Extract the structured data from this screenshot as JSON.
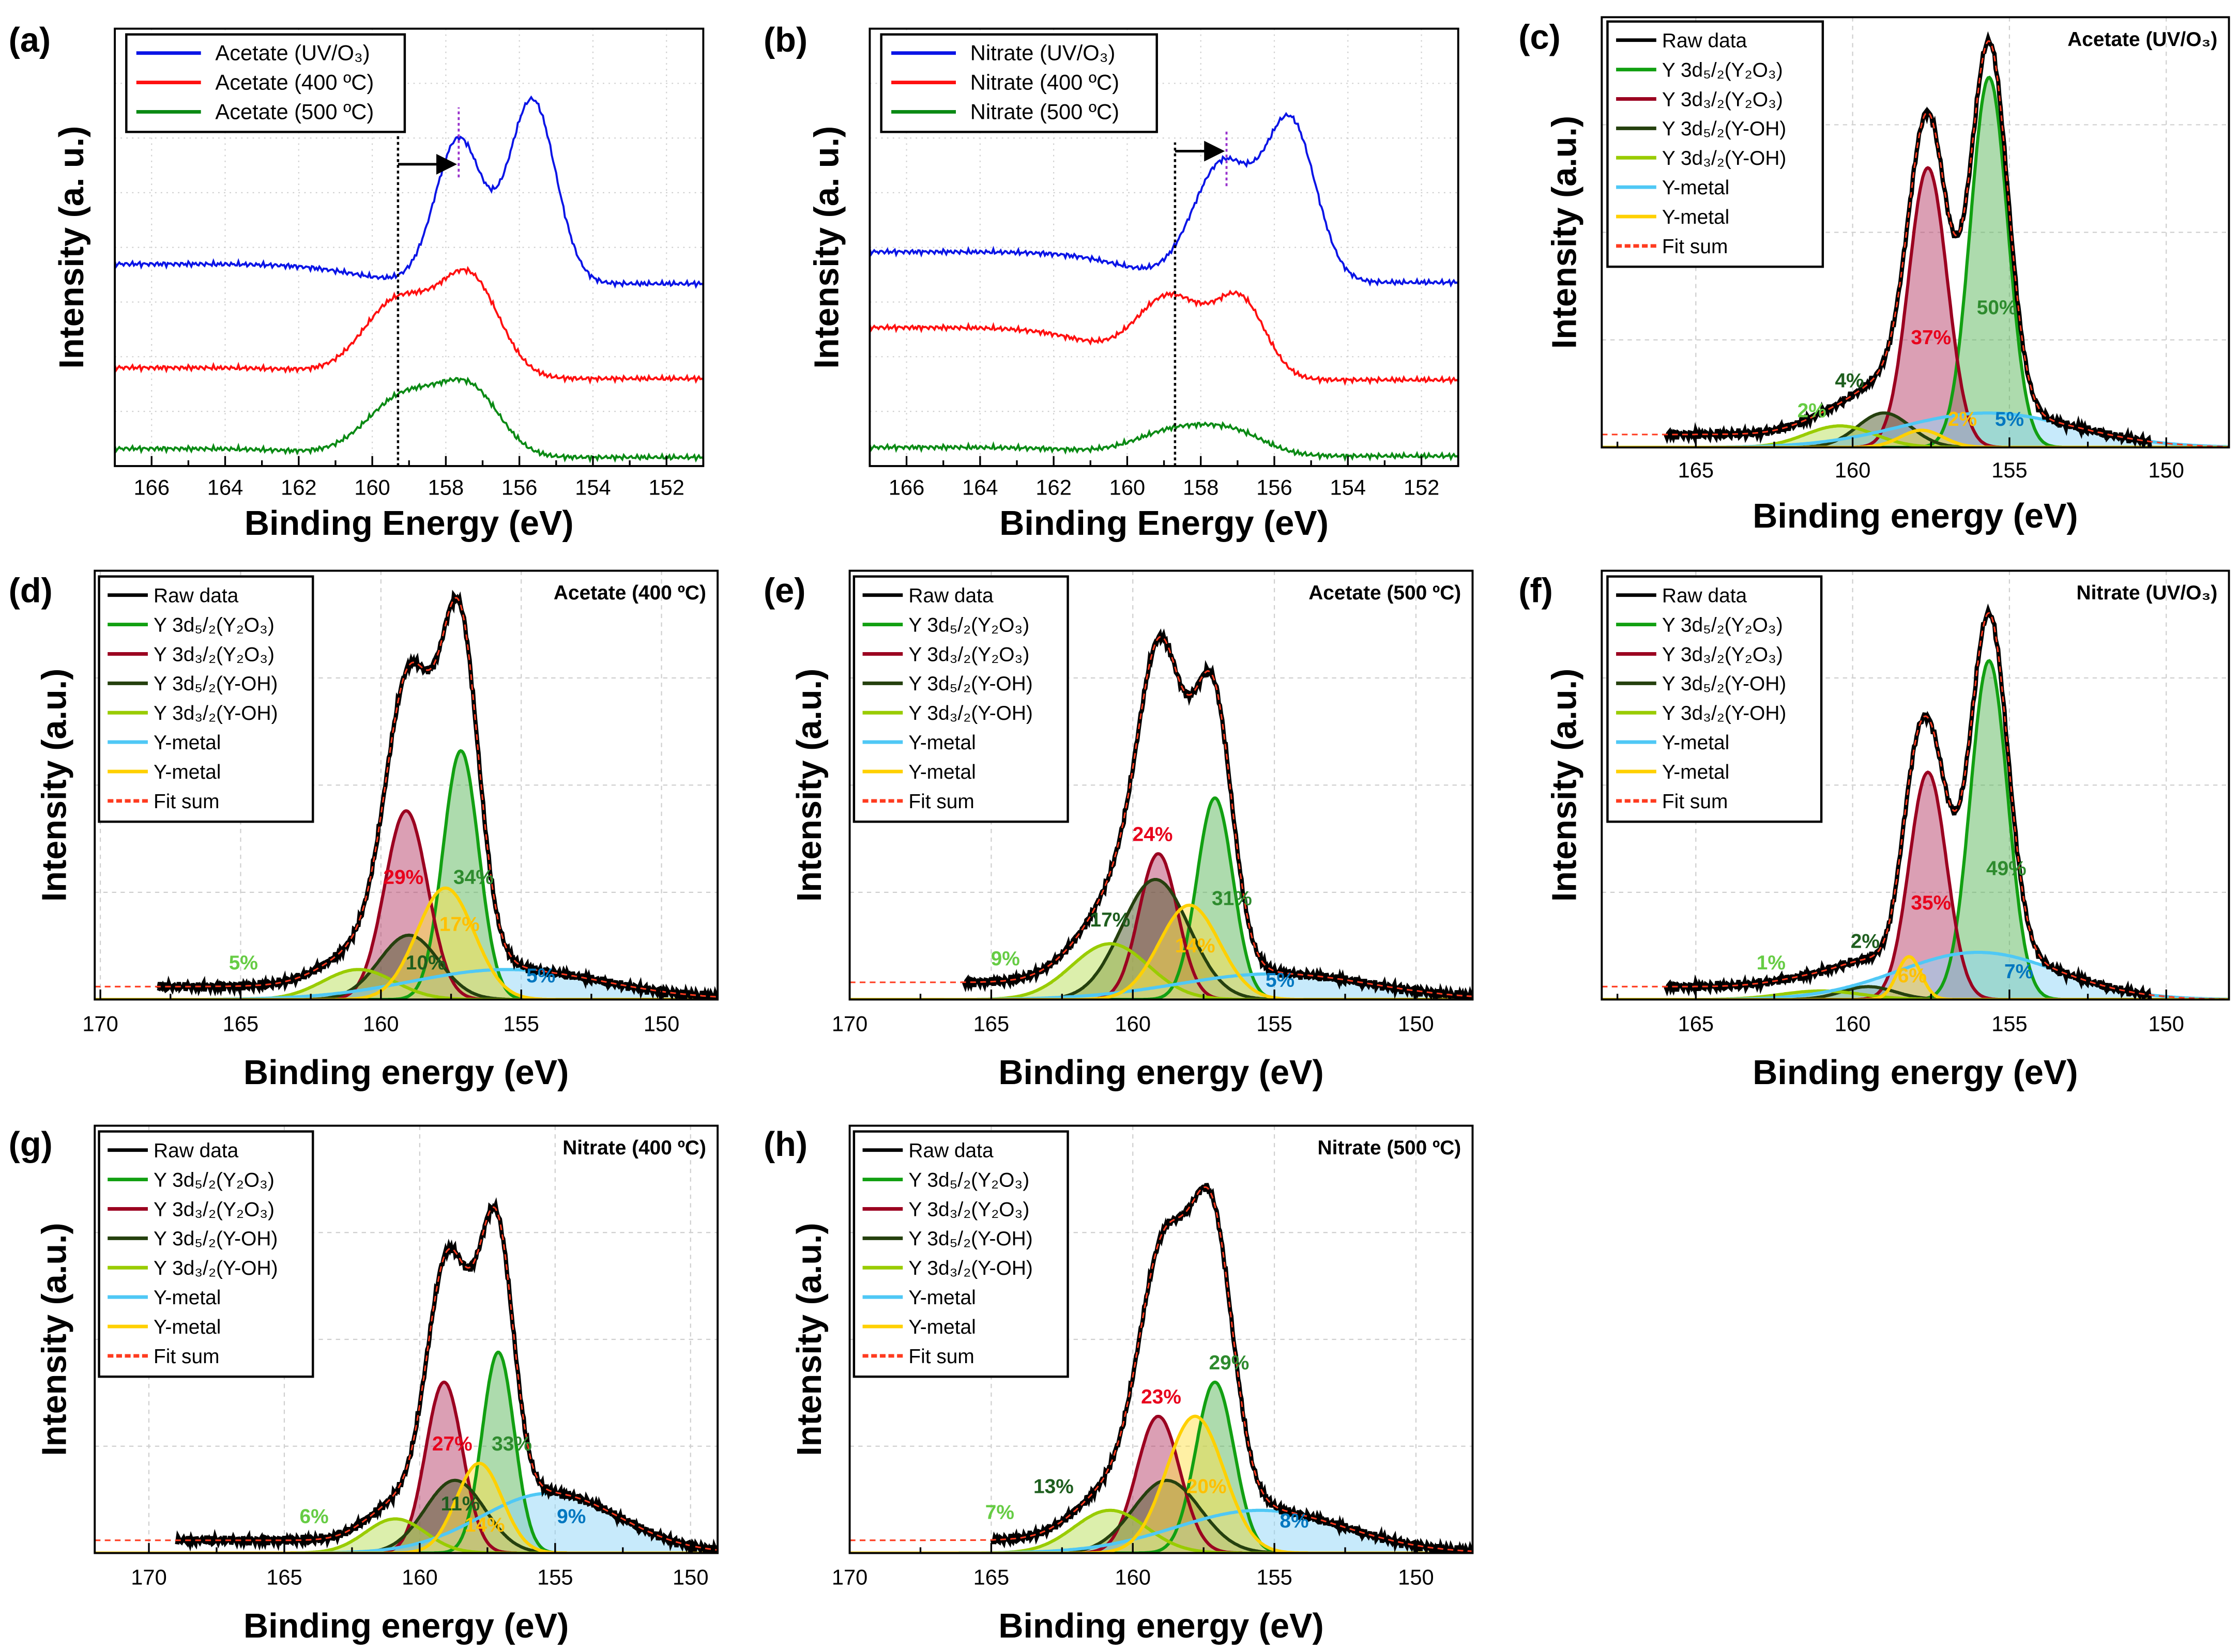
{
  "styles": {
    "raw_color": "#000000",
    "fit_color": "#ff3b1f",
    "components": [
      {
        "line": "#12a012",
        "fill": "#5cb85c",
        "label": "#2e8b2e"
      },
      {
        "line": "#9b0020",
        "fill": "#b8406a",
        "label": "#e8001c"
      },
      {
        "line": "#25400e",
        "fill": "#4d5a2a",
        "label": "#1e5e1e"
      },
      {
        "line": "#99cc00",
        "fill": "#b9e05a",
        "label": "#66cc44"
      },
      {
        "line": "#4fc8f5",
        "fill": "#8fd6f7",
        "label": "#0077c0"
      },
      {
        "line": "#ffd000",
        "fill": "#ffe24a",
        "label": "#ffc000"
      }
    ]
  },
  "chart_data": [
    {
      "panel": "(a)",
      "type": "line",
      "title": "",
      "xlabel": "Binding Energy (eV)",
      "ylabel": "Intensity (a. u.)",
      "xlim": [
        167,
        151
      ],
      "ylim": [
        0,
        1
      ],
      "xticks": [
        166,
        164,
        162,
        160,
        158,
        156,
        154,
        152
      ],
      "xtick_labels": [
        "166",
        "164",
        "162",
        "160",
        "158",
        "156",
        "154",
        "152"
      ],
      "legend_position": "top-left",
      "series": [
        {
          "name": "Acetate (UV/O₃)",
          "color": "#0a14e6",
          "offset": 0.417,
          "step": 0.045,
          "step_center": 160.5,
          "peaks": [
            [
              155.65,
              1.5,
              0.42
            ],
            [
              157.65,
              1.5,
              0.33
            ]
          ]
        },
        {
          "name": "Acetate (400 ºC)",
          "color": "#ff1010",
          "offset": 0.2,
          "step": 0.025,
          "step_center": 161,
          "peaks": [
            [
              157.35,
              1.9,
              0.225
            ],
            [
              159.3,
              2.2,
              0.175
            ]
          ]
        },
        {
          "name": "Acetate (500 ºC)",
          "color": "#0a8a14",
          "offset": 0.02,
          "step": 0.02,
          "step_center": 161.5,
          "peaks": [
            [
              159.1,
              2.4,
              0.14
            ],
            [
              157.3,
              1.9,
              0.14
            ]
          ]
        }
      ],
      "annotations": {
        "shift_from": 159.3,
        "shift_to": 157.65,
        "arrow_y": 0.69,
        "line_top": 0.76,
        "marker_range": [
          0.66,
          0.82
        ]
      }
    },
    {
      "panel": "(b)",
      "type": "line",
      "title": "",
      "xlabel": "Binding Energy (eV)",
      "ylabel": "Intensity (a. u.)",
      "xlim": [
        167,
        151
      ],
      "ylim": [
        0,
        1
      ],
      "xticks": [
        166,
        164,
        162,
        160,
        158,
        156,
        154,
        152
      ],
      "xtick_labels": [
        "166",
        "164",
        "162",
        "160",
        "158",
        "156",
        "154",
        "152"
      ],
      "legend_position": "top-left",
      "series": [
        {
          "name": "Nitrate (UV/O₃)",
          "color": "#0a14e6",
          "offset": 0.42,
          "step": 0.07,
          "step_center": 160,
          "peaks": [
            [
              155.55,
              1.6,
              0.36
            ],
            [
              157.4,
              1.9,
              0.27
            ]
          ]
        },
        {
          "name": "Nitrate (400 ºC)",
          "color": "#ff1010",
          "offset": 0.197,
          "step": 0.12,
          "step_center": 160.5,
          "peaks": [
            [
              158.8,
              2.2,
              0.18
            ],
            [
              156.9,
              1.6,
              0.17
            ]
          ]
        },
        {
          "name": "Nitrate (500 ºC)",
          "color": "#0a8a14",
          "offset": 0.023,
          "step": 0.02,
          "step_center": 161,
          "peaks": [
            [
              158.6,
              2.6,
              0.06
            ],
            [
              157.0,
              2.0,
              0.04
            ]
          ]
        }
      ],
      "annotations": {
        "shift_from": 158.7,
        "shift_to": 157.3,
        "arrow_y": 0.72,
        "line_top": 0.74,
        "marker_range": [
          0.64,
          0.77
        ]
      }
    },
    {
      "panel": "(c)",
      "type": "fit",
      "title": "Acetate (UV/O₃)",
      "xlabel": "Binding energy (eV)",
      "ylabel": "Intensity (a.u.)",
      "xlim": [
        168,
        148
      ],
      "ylim": [
        0,
        1
      ],
      "xticks": [
        165,
        160,
        155,
        150
      ],
      "xtick_labels": [
        "165",
        "160",
        "155",
        "150"
      ],
      "raw_label": "Raw data",
      "fit_label": "Fit sum",
      "raw_range": [
        166,
        150.5
      ],
      "bg_step": 0.03,
      "bg_center": 160.5,
      "components": [
        {
          "name": "Y 3d₅/₂(Y₂O₃)",
          "center": 155.65,
          "fwhm": 1.4,
          "height": 0.86,
          "percent": "50%",
          "label_at": [
            155.4,
            0.31
          ]
        },
        {
          "name": "Y 3d₃/₂(Y₂O₃)",
          "center": 157.6,
          "fwhm": 1.45,
          "height": 0.65,
          "percent": "37%",
          "label_at": [
            157.5,
            0.24
          ]
        },
        {
          "name": "Y 3d₅/₂(Y-OH)",
          "center": 159.0,
          "fwhm": 2.0,
          "height": 0.08,
          "percent": "4%",
          "label_at": [
            160.1,
            0.14
          ]
        },
        {
          "name": "Y 3d₃/₂(Y-OH)",
          "center": 160.4,
          "fwhm": 2.6,
          "height": 0.05,
          "percent": "2%",
          "label_at": [
            161.3,
            0.07
          ]
        },
        {
          "name": "Y-metal",
          "center": 155.7,
          "fwhm": 6.5,
          "height": 0.08,
          "percent": "5%",
          "label_at": [
            155.0,
            0.05
          ]
        },
        {
          "name": "Y-metal",
          "center": 157.8,
          "fwhm": 1.6,
          "height": 0.04,
          "percent": "2%",
          "label_at": [
            156.5,
            0.05
          ]
        }
      ]
    },
    {
      "panel": "(d)",
      "type": "fit",
      "title": "Acetate (400 ºC)",
      "xlabel": "Binding energy (eV)",
      "ylabel": "Intensity (a.u.)",
      "xlim": [
        170.2,
        148
      ],
      "ylim": [
        0,
        1
      ],
      "xticks": [
        170,
        165,
        160,
        155,
        150
      ],
      "xtick_labels": [
        "170",
        "165",
        "160",
        "155",
        "150"
      ],
      "raw_label": "Raw data",
      "fit_label": "Fit sum",
      "raw_range": [
        168,
        148
      ],
      "bg_step": 0.03,
      "bg_center": 161,
      "components": [
        {
          "name": "Y 3d₅/₂(Y₂O₃)",
          "center": 157.15,
          "fwhm": 1.5,
          "height": 0.58,
          "percent": "34%",
          "label_at": [
            156.7,
            0.27
          ]
        },
        {
          "name": "Y 3d₃/₂(Y₂O₃)",
          "center": 159.1,
          "fwhm": 1.8,
          "height": 0.44,
          "percent": "29%",
          "label_at": [
            159.2,
            0.27
          ]
        },
        {
          "name": "Y 3d₅/₂(Y-OH)",
          "center": 159.0,
          "fwhm": 2.5,
          "height": 0.15,
          "percent": "10%",
          "label_at": [
            158.4,
            0.07
          ]
        },
        {
          "name": "Y 3d₃/₂(Y-OH)",
          "center": 160.8,
          "fwhm": 3.0,
          "height": 0.07,
          "percent": "5%",
          "label_at": [
            164.9,
            0.07
          ]
        },
        {
          "name": "Y-metal",
          "center": 155.5,
          "fwhm": 8.0,
          "height": 0.07,
          "percent": "5%",
          "label_at": [
            154.3,
            0.04
          ]
        },
        {
          "name": "Y-metal",
          "center": 157.7,
          "fwhm": 2.4,
          "height": 0.26,
          "percent": "17%",
          "label_at": [
            157.2,
            0.16
          ]
        }
      ]
    },
    {
      "panel": "(e)",
      "type": "fit",
      "title": "Acetate (500 ºC)",
      "xlabel": "Binding energy (eV)",
      "ylabel": "Intensity (a.u.)",
      "xlim": [
        170,
        148
      ],
      "ylim": [
        0,
        1
      ],
      "xticks": [
        170,
        165,
        160,
        155,
        150
      ],
      "xtick_labels": [
        "170",
        "165",
        "160",
        "155",
        "150"
      ],
      "raw_label": "Raw data",
      "fit_label": "Fit sum",
      "raw_range": [
        166,
        148
      ],
      "bg_step": 0.04,
      "bg_center": 161,
      "components": [
        {
          "name": "Y 3d₅/₂(Y₂O₃)",
          "center": 157.1,
          "fwhm": 1.5,
          "height": 0.47,
          "percent": "31%",
          "label_at": [
            156.5,
            0.22
          ]
        },
        {
          "name": "Y 3d₃/₂(Y₂O₃)",
          "center": 159.1,
          "fwhm": 1.6,
          "height": 0.34,
          "percent": "24%",
          "label_at": [
            159.3,
            0.37
          ]
        },
        {
          "name": "Y 3d₅/₂(Y-OH)",
          "center": 159.2,
          "fwhm": 2.8,
          "height": 0.28,
          "percent": "17%",
          "label_at": [
            160.8,
            0.17
          ]
        },
        {
          "name": "Y 3d₃/₂(Y-OH)",
          "center": 160.8,
          "fwhm": 3.2,
          "height": 0.13,
          "percent": "9%",
          "label_at": [
            164.5,
            0.08
          ]
        },
        {
          "name": "Y-metal",
          "center": 155.0,
          "fwhm": 8.0,
          "height": 0.06,
          "percent": "5%",
          "label_at": [
            154.8,
            0.03
          ]
        },
        {
          "name": "Y-metal",
          "center": 158.0,
          "fwhm": 2.5,
          "height": 0.22,
          "percent": "14%",
          "label_at": [
            157.8,
            0.11
          ]
        }
      ]
    },
    {
      "panel": "(f)",
      "type": "fit",
      "title": "Nitrate (UV/O₃)",
      "xlabel": "Binding energy (eV)",
      "ylabel": "Intensity (a.u.)",
      "xlim": [
        168,
        148
      ],
      "ylim": [
        0,
        1
      ],
      "xticks": [
        165,
        160,
        155,
        150
      ],
      "xtick_labels": [
        "165",
        "160",
        "155",
        "150"
      ],
      "raw_label": "Raw data",
      "fit_label": "Fit sum",
      "raw_range": [
        166,
        150.5
      ],
      "bg_step": 0.03,
      "bg_center": 160,
      "components": [
        {
          "name": "Y 3d₅/₂(Y₂O₃)",
          "center": 155.65,
          "fwhm": 1.4,
          "height": 0.79,
          "percent": "49%",
          "label_at": [
            155.1,
            0.29
          ]
        },
        {
          "name": "Y 3d₃/₂(Y₂O₃)",
          "center": 157.6,
          "fwhm": 1.4,
          "height": 0.53,
          "percent": "35%",
          "label_at": [
            157.5,
            0.21
          ]
        },
        {
          "name": "Y 3d₅/₂(Y-OH)",
          "center": 159.5,
          "fwhm": 2.0,
          "height": 0.03,
          "percent": "2%",
          "label_at": [
            159.6,
            0.12
          ]
        },
        {
          "name": "Y 3d₃/₂(Y-OH)",
          "center": 161.0,
          "fwhm": 3.0,
          "height": 0.02,
          "percent": "1%",
          "label_at": [
            162.6,
            0.07
          ]
        },
        {
          "name": "Y-metal",
          "center": 156.0,
          "fwhm": 6.0,
          "height": 0.11,
          "percent": "7%",
          "label_at": [
            154.7,
            0.05
          ]
        },
        {
          "name": "Y-metal",
          "center": 158.2,
          "fwhm": 0.9,
          "height": 0.1,
          "percent": "6%",
          "label_at": [
            158.1,
            0.04
          ]
        }
      ]
    },
    {
      "panel": "(g)",
      "type": "fit",
      "title": "Nitrate (400 ºC)",
      "xlabel": "Binding energy (eV)",
      "ylabel": "Intensity (a.u.)",
      "xlim": [
        172,
        149
      ],
      "ylim": [
        0,
        1
      ],
      "xticks": [
        170,
        165,
        160,
        155,
        150
      ],
      "xtick_labels": [
        "170",
        "165",
        "160",
        "155",
        "150"
      ],
      "raw_label": "Raw data",
      "fit_label": "Fit sum",
      "raw_range": [
        169,
        149
      ],
      "bg_step": 0.03,
      "bg_center": 161,
      "components": [
        {
          "name": "Y 3d₅/₂(Y₂O₃)",
          "center": 157.1,
          "fwhm": 1.4,
          "height": 0.47,
          "percent": "33%",
          "label_at": [
            156.6,
            0.24
          ]
        },
        {
          "name": "Y 3d₃/₂(Y₂O₃)",
          "center": 159.1,
          "fwhm": 1.6,
          "height": 0.4,
          "percent": "27%",
          "label_at": [
            158.8,
            0.24
          ]
        },
        {
          "name": "Y 3d₅/₂(Y-OH)",
          "center": 158.7,
          "fwhm": 2.6,
          "height": 0.17,
          "percent": "11%",
          "label_at": [
            158.5,
            0.1
          ]
        },
        {
          "name": "Y 3d₃/₂(Y-OH)",
          "center": 160.9,
          "fwhm": 2.6,
          "height": 0.08,
          "percent": "6%",
          "label_at": [
            163.9,
            0.07
          ]
        },
        {
          "name": "Y-metal",
          "center": 155.2,
          "fwhm": 6.0,
          "height": 0.14,
          "percent": "9%",
          "label_at": [
            154.4,
            0.07
          ]
        },
        {
          "name": "Y-metal",
          "center": 157.8,
          "fwhm": 2.0,
          "height": 0.21,
          "percent": "14%",
          "label_at": [
            157.6,
            0.05
          ]
        }
      ]
    },
    {
      "panel": "(h)",
      "type": "fit",
      "title": "Nitrate (500 ºC)",
      "xlabel": "Binding energy (eV)",
      "ylabel": "Intensity (a.u.)",
      "xlim": [
        170,
        148
      ],
      "ylim": [
        0,
        1
      ],
      "xticks": [
        170,
        165,
        160,
        155,
        150
      ],
      "xtick_labels": [
        "170",
        "165",
        "160",
        "155",
        "150"
      ],
      "raw_label": "Raw data",
      "fit_label": "Fit sum",
      "raw_range": [
        165,
        148
      ],
      "bg_step": 0.03,
      "bg_center": 161,
      "components": [
        {
          "name": "Y 3d₅/₂(Y₂O₃)",
          "center": 157.1,
          "fwhm": 1.6,
          "height": 0.4,
          "percent": "29%",
          "label_at": [
            156.6,
            0.43
          ]
        },
        {
          "name": "Y 3d₃/₂(Y₂O₃)",
          "center": 159.1,
          "fwhm": 1.8,
          "height": 0.32,
          "percent": "23%",
          "label_at": [
            159.0,
            0.35
          ]
        },
        {
          "name": "Y 3d₅/₂(Y-OH)",
          "center": 158.8,
          "fwhm": 2.8,
          "height": 0.17,
          "percent": "13%",
          "label_at": [
            162.8,
            0.14
          ]
        },
        {
          "name": "Y 3d₃/₂(Y-OH)",
          "center": 160.8,
          "fwhm": 3.0,
          "height": 0.1,
          "percent": "7%",
          "label_at": [
            164.7,
            0.08
          ]
        },
        {
          "name": "Y-metal",
          "center": 155.5,
          "fwhm": 7.0,
          "height": 0.1,
          "percent": "8%",
          "label_at": [
            154.3,
            0.06
          ]
        },
        {
          "name": "Y-metal",
          "center": 157.8,
          "fwhm": 2.4,
          "height": 0.32,
          "percent": "20%",
          "label_at": [
            157.4,
            0.14
          ]
        }
      ]
    }
  ]
}
